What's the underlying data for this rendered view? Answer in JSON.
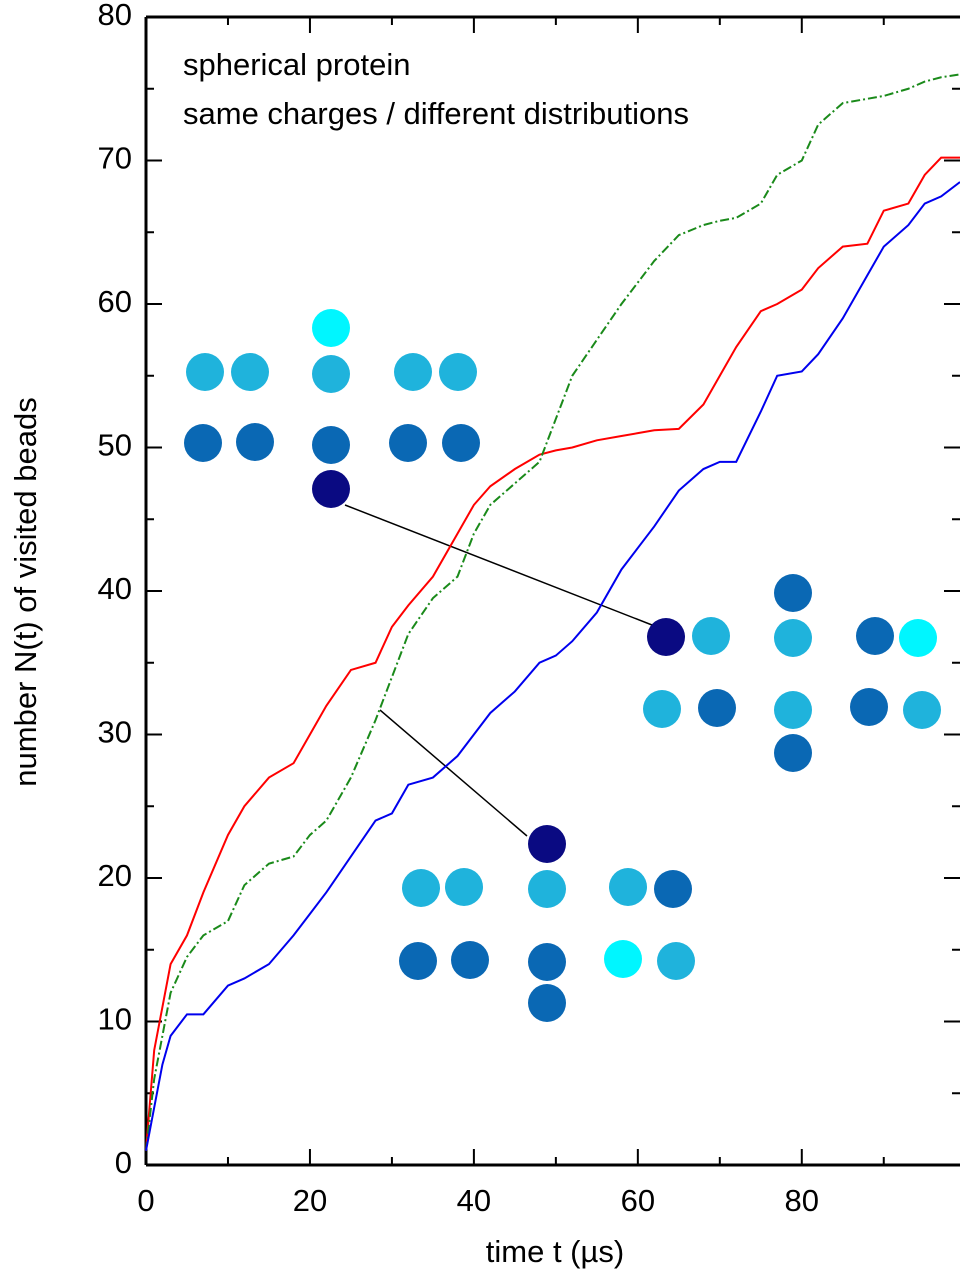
{
  "chart_data": {
    "type": "line",
    "annotations": [
      "spherical protein",
      "same charges / different distributions"
    ],
    "x_label": "time t  (µs)",
    "y_label": "number N(t) of visited beads",
    "x": [
      0,
      1,
      2,
      3,
      5,
      7,
      10,
      12,
      15,
      18,
      20,
      22,
      25,
      28,
      30,
      32,
      35,
      38,
      40,
      42,
      45,
      48,
      50,
      52,
      55,
      58,
      60,
      62,
      65,
      68,
      70,
      72,
      75,
      77,
      80,
      82,
      85,
      88,
      90,
      93,
      95,
      97,
      99.3
    ],
    "series": [
      {
        "color": "#ff0000",
        "values": [
          1,
          8,
          11,
          14,
          16,
          19,
          23,
          25,
          27,
          28,
          30,
          32,
          34.5,
          35,
          37.5,
          39,
          41,
          44,
          46,
          47.3,
          48.5,
          49.5,
          49.8,
          50,
          50.5,
          50.8,
          51,
          51.2,
          51.3,
          53,
          55,
          57,
          59.5,
          60,
          61,
          62.5,
          64,
          64.2,
          66.5,
          67,
          69,
          70.2,
          70.2
        ]
      },
      {
        "color": "#1a8a1a",
        "dash": "dashdot",
        "values": [
          1,
          6,
          9,
          12,
          14.5,
          16,
          17,
          19.5,
          21,
          21.5,
          23,
          24,
          27,
          31,
          34,
          37,
          39.5,
          41,
          44,
          46,
          47.5,
          49,
          52,
          55,
          57.5,
          60,
          61.5,
          63,
          64.8,
          65.5,
          65.8,
          66,
          67,
          69,
          70,
          72.5,
          74,
          74.3,
          74.5,
          75,
          75.5,
          75.8,
          76
        ]
      },
      {
        "color": "#0000ee",
        "values": [
          1,
          4,
          7,
          9,
          10.5,
          10.5,
          12.5,
          13,
          14,
          16,
          17.5,
          19,
          21.5,
          24,
          24.5,
          26.5,
          27,
          28.5,
          30,
          31.5,
          33,
          35,
          35.5,
          36.5,
          38.5,
          41.5,
          43,
          44.5,
          47,
          48.5,
          49,
          49,
          52.5,
          55,
          55.3,
          56.5,
          59,
          62,
          64,
          65.5,
          67,
          67.5,
          68.5
        ]
      }
    ],
    "xlim": [
      0,
      99.3
    ],
    "ylim": [
      0,
      80
    ],
    "xticks": [
      0,
      20,
      40,
      60,
      80
    ],
    "yticks": [
      0,
      10,
      20,
      30,
      40,
      50,
      60,
      70,
      80
    ],
    "xminorticks": [
      10,
      30,
      50,
      70,
      90
    ],
    "yminorticks": [
      5,
      15,
      25,
      35,
      45,
      55,
      65,
      75
    ]
  }
}
